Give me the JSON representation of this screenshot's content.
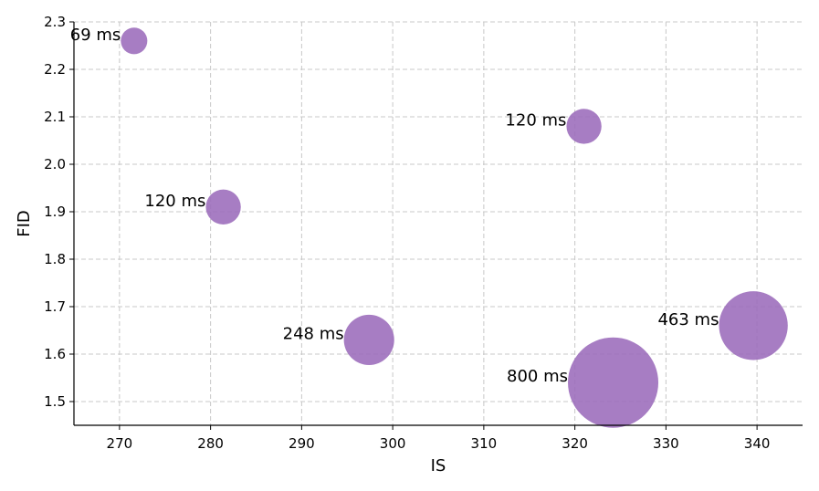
{
  "chart_data": {
    "type": "scatter",
    "xlabel": "IS",
    "ylabel": "FID",
    "xlim": [
      265,
      345
    ],
    "ylim": [
      1.45,
      2.3
    ],
    "xticks": [
      "270",
      "280",
      "290",
      "300",
      "310",
      "320",
      "330",
      "340"
    ],
    "yticks": [
      "1.5",
      "1.6",
      "1.7",
      "1.8",
      "1.9",
      "2.0",
      "2.1",
      "2.2",
      "2.3"
    ],
    "grid": true,
    "marker_color": "#9b6bbb",
    "points": [
      {
        "x": 271.6,
        "y": 2.26,
        "label": "69 ms",
        "size": 69
      },
      {
        "x": 281.4,
        "y": 1.91,
        "label": "120 ms",
        "size": 120
      },
      {
        "x": 321.0,
        "y": 2.08,
        "label": "120 ms",
        "size": 120
      },
      {
        "x": 297.4,
        "y": 1.63,
        "label": "248 ms",
        "size": 248
      },
      {
        "x": 339.6,
        "y": 1.66,
        "label": "463 ms",
        "size": 463
      },
      {
        "x": 324.2,
        "y": 1.54,
        "label": "800 ms",
        "size": 800
      }
    ]
  }
}
